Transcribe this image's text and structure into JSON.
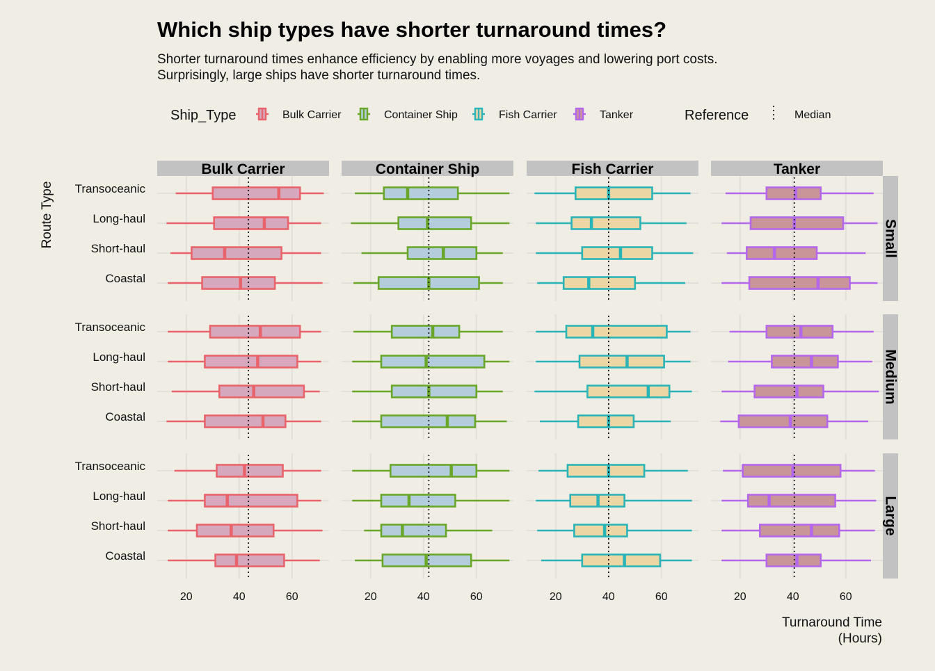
{
  "chart_data": {
    "type": "boxplot",
    "title": "Which ship types have shorter turnaround times?",
    "subtitle_lines": [
      "Shorter turnaround times enhance efficiency by enabling more voyages and lowering port costs.",
      "Surprisingly, large ships have shorter turnaround times."
    ],
    "xlabel_lines": [
      "Turnaround Time",
      "(Hours)"
    ],
    "ylabel": "Route Type",
    "xlim": [
      9,
      74
    ],
    "x_ticks": [
      20,
      40,
      60
    ],
    "grid": true,
    "legend": {
      "position": "top",
      "ship_title": "Ship_Type",
      "ship_items": [
        "Bulk Carrier",
        "Container Ship",
        "Fish Carrier",
        "Tanker"
      ],
      "reference_title": "Reference",
      "reference_label": "Median"
    },
    "colors": {
      "Bulk Carrier": {
        "stroke": "#e8646a",
        "fill": "#d6a8be"
      },
      "Container Ship": {
        "stroke": "#6aa629",
        "fill": "#b3cddc"
      },
      "Fish Carrier": {
        "stroke": "#2bb4b8",
        "fill": "#ecd6a4"
      },
      "Tanker": {
        "stroke": "#b467ea",
        "fill": "#c99599"
      }
    },
    "columns": [
      "Bulk Carrier",
      "Container Ship",
      "Fish Carrier",
      "Tanker"
    ],
    "rows": [
      "Small",
      "Medium",
      "Large"
    ],
    "route_types": [
      "Transoceanic",
      "Long-haul",
      "Short-haul",
      "Coastal"
    ],
    "reference_medians": {
      "Bulk Carrier": 43.5,
      "Container Ship": 42,
      "Fish Carrier": 40,
      "Tanker": 40.5
    },
    "panels": [
      {
        "ship": "Bulk Carrier",
        "size": "Small",
        "boxes": [
          {
            "route": "Transoceanic",
            "min": 16,
            "q1": 30,
            "median": 55,
            "q3": 63,
            "max": 72
          },
          {
            "route": "Long-haul",
            "min": 12.5,
            "q1": 30.5,
            "median": 49.5,
            "q3": 58.5,
            "max": 71
          },
          {
            "route": "Short-haul",
            "min": 14,
            "q1": 22,
            "median": 34.5,
            "q3": 56,
            "max": 71
          },
          {
            "route": "Coastal",
            "min": 13,
            "q1": 26,
            "median": 40.5,
            "q3": 53.5,
            "max": 71.5
          }
        ]
      },
      {
        "ship": "Container Ship",
        "size": "Small",
        "boxes": [
          {
            "route": "Transoceanic",
            "min": 14,
            "q1": 25,
            "median": 34,
            "q3": 53,
            "max": 72.5
          },
          {
            "route": "Long-haul",
            "min": 12.5,
            "q1": 30.5,
            "median": 41.5,
            "q3": 58,
            "max": 72.5
          },
          {
            "route": "Short-haul",
            "min": 16.5,
            "q1": 34,
            "median": 47.5,
            "q3": 60,
            "max": 70
          },
          {
            "route": "Coastal",
            "min": 13.5,
            "q1": 23,
            "median": 42,
            "q3": 61,
            "max": 70
          }
        ]
      },
      {
        "ship": "Fish Carrier",
        "size": "Small",
        "boxes": [
          {
            "route": "Transoceanic",
            "min": 12,
            "q1": 27.5,
            "median": 40,
            "q3": 56.5,
            "max": 71
          },
          {
            "route": "Long-haul",
            "min": 12.5,
            "q1": 26,
            "median": 33.5,
            "q3": 52,
            "max": 69.5
          },
          {
            "route": "Short-haul",
            "min": 12.5,
            "q1": 30,
            "median": 44.5,
            "q3": 56.5,
            "max": 72
          },
          {
            "route": "Coastal",
            "min": 13,
            "q1": 23,
            "median": 32.5,
            "q3": 50,
            "max": 69
          }
        ]
      },
      {
        "ship": "Tanker",
        "size": "Small",
        "boxes": [
          {
            "route": "Transoceanic",
            "min": 14.5,
            "q1": 30,
            "median": 41,
            "q3": 50.5,
            "max": 70.5
          },
          {
            "route": "Long-haul",
            "min": 13,
            "q1": 24,
            "median": 40.5,
            "q3": 59,
            "max": 72
          },
          {
            "route": "Short-haul",
            "min": 15,
            "q1": 22.5,
            "median": 33,
            "q3": 49,
            "max": 67.5
          },
          {
            "route": "Coastal",
            "min": 13,
            "q1": 23.5,
            "median": 49.5,
            "q3": 61.5,
            "max": 72
          }
        ]
      },
      {
        "ship": "Bulk Carrier",
        "size": "Medium",
        "boxes": [
          {
            "route": "Transoceanic",
            "min": 13,
            "q1": 29,
            "median": 48,
            "q3": 63,
            "max": 71
          },
          {
            "route": "Long-haul",
            "min": 13,
            "q1": 27,
            "median": 47,
            "q3": 62,
            "max": 71
          },
          {
            "route": "Short-haul",
            "min": 14.5,
            "q1": 32.5,
            "median": 45.5,
            "q3": 64.5,
            "max": 70.5
          },
          {
            "route": "Coastal",
            "min": 12.5,
            "q1": 27,
            "median": 49,
            "q3": 57.5,
            "max": 71
          }
        ]
      },
      {
        "ship": "Container Ship",
        "size": "Medium",
        "boxes": [
          {
            "route": "Transoceanic",
            "min": 13.5,
            "q1": 28,
            "median": 43.5,
            "q3": 53.5,
            "max": 70
          },
          {
            "route": "Long-haul",
            "min": 13,
            "q1": 24,
            "median": 41,
            "q3": 63,
            "max": 72.5
          },
          {
            "route": "Short-haul",
            "min": 13,
            "q1": 28,
            "median": 42,
            "q3": 60,
            "max": 70
          },
          {
            "route": "Coastal",
            "min": 13,
            "q1": 24,
            "median": 49,
            "q3": 59.5,
            "max": 71.5
          }
        ]
      },
      {
        "ship": "Fish Carrier",
        "size": "Medium",
        "boxes": [
          {
            "route": "Transoceanic",
            "min": 12.5,
            "q1": 24,
            "median": 34,
            "q3": 62,
            "max": 71
          },
          {
            "route": "Long-haul",
            "min": 12.5,
            "q1": 29,
            "median": 47,
            "q3": 61,
            "max": 71
          },
          {
            "route": "Short-haul",
            "min": 12,
            "q1": 32,
            "median": 55,
            "q3": 63,
            "max": 71.5
          },
          {
            "route": "Coastal",
            "min": 14,
            "q1": 28.5,
            "median": 40,
            "q3": 49.5,
            "max": 63.5
          }
        ]
      },
      {
        "ship": "Tanker",
        "size": "Medium",
        "boxes": [
          {
            "route": "Transoceanic",
            "min": 16,
            "q1": 30,
            "median": 43,
            "q3": 55,
            "max": 70.5
          },
          {
            "route": "Long-haul",
            "min": 15.5,
            "q1": 32,
            "median": 47,
            "q3": 57,
            "max": 70
          },
          {
            "route": "Short-haul",
            "min": 13,
            "q1": 25.5,
            "median": 41.5,
            "q3": 51.5,
            "max": 72.5
          },
          {
            "route": "Coastal",
            "min": 12.5,
            "q1": 19.5,
            "median": 39,
            "q3": 53,
            "max": 68.5
          }
        ]
      },
      {
        "ship": "Bulk Carrier",
        "size": "Large",
        "boxes": [
          {
            "route": "Transoceanic",
            "min": 15.5,
            "q1": 31.5,
            "median": 42,
            "q3": 56.5,
            "max": 71
          },
          {
            "route": "Long-haul",
            "min": 13,
            "q1": 27,
            "median": 35.5,
            "q3": 62,
            "max": 71
          },
          {
            "route": "Short-haul",
            "min": 13,
            "q1": 24,
            "median": 37,
            "q3": 53,
            "max": 71.5
          },
          {
            "route": "Coastal",
            "min": 13,
            "q1": 31,
            "median": 39,
            "q3": 57,
            "max": 70.5
          }
        ]
      },
      {
        "ship": "Container Ship",
        "size": "Large",
        "boxes": [
          {
            "route": "Transoceanic",
            "min": 13,
            "q1": 27.5,
            "median": 50.5,
            "q3": 60,
            "max": 72.5
          },
          {
            "route": "Long-haul",
            "min": 13,
            "q1": 24,
            "median": 34.5,
            "q3": 52,
            "max": 72.5
          },
          {
            "route": "Short-haul",
            "min": 17.5,
            "q1": 24,
            "median": 32,
            "q3": 48.5,
            "max": 66
          },
          {
            "route": "Coastal",
            "min": 14,
            "q1": 24.5,
            "median": 41,
            "q3": 58,
            "max": 72.5
          }
        ]
      },
      {
        "ship": "Fish Carrier",
        "size": "Large",
        "boxes": [
          {
            "route": "Transoceanic",
            "min": 13.5,
            "q1": 24.5,
            "median": 40,
            "q3": 53.5,
            "max": 70
          },
          {
            "route": "Long-haul",
            "min": 12.5,
            "q1": 25.5,
            "median": 36,
            "q3": 46,
            "max": 71.5
          },
          {
            "route": "Short-haul",
            "min": 13,
            "q1": 27,
            "median": 38.5,
            "q3": 47,
            "max": 71.5
          },
          {
            "route": "Coastal",
            "min": 14.5,
            "q1": 30,
            "median": 46,
            "q3": 59.5,
            "max": 71.5
          }
        ]
      },
      {
        "ship": "Tanker",
        "size": "Large",
        "boxes": [
          {
            "route": "Transoceanic",
            "min": 13.5,
            "q1": 21,
            "median": 40,
            "q3": 58,
            "max": 71
          },
          {
            "route": "Long-haul",
            "min": 13,
            "q1": 23,
            "median": 31,
            "q3": 56,
            "max": 71.5
          },
          {
            "route": "Short-haul",
            "min": 13,
            "q1": 27.5,
            "median": 47,
            "q3": 57.5,
            "max": 71
          },
          {
            "route": "Coastal",
            "min": 13,
            "q1": 30,
            "median": 41.5,
            "q3": 50.5,
            "max": 69.5
          }
        ]
      }
    ]
  }
}
